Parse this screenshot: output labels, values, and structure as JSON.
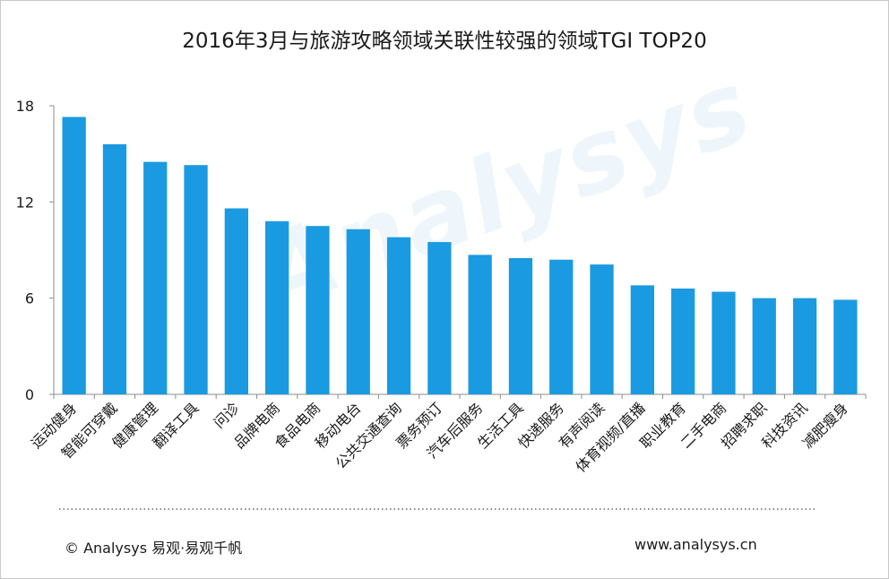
{
  "title": "2016年3月与旅游攻略领域关联性较强的领域TGI  TOP20",
  "watermark": "Analysys",
  "footer": {
    "copyright": "© Analysys 易观·易观千帆",
    "url": "www.analysys.cn"
  },
  "colors": {
    "bar": "#1a9ae0",
    "axis": "#8c8c8c",
    "text": "#1a1a1a"
  },
  "chart_data": {
    "type": "bar",
    "title": "2016年3月与旅游攻略领域关联性较强的领域TGI  TOP20",
    "xlabel": "",
    "ylabel": "",
    "ylim": [
      0,
      18
    ],
    "yticks": [
      "0",
      "6",
      "12",
      "18"
    ],
    "grid": false,
    "legend": "none",
    "categories": [
      "运动健身",
      "智能可穿戴",
      "健康管理",
      "翻译工具",
      "问诊",
      "品牌电商",
      "食品电商",
      "移动电台",
      "公共交通查询",
      "票务预订",
      "汽车后服务",
      "生活工具",
      "快递服务",
      "有声阅读",
      "体育视频/直播",
      "职业教育",
      "二手电商",
      "招聘求职",
      "科技资讯",
      "减肥瘦身"
    ],
    "values": [
      17.3,
      15.6,
      14.5,
      14.3,
      11.6,
      10.8,
      10.5,
      10.3,
      9.8,
      9.5,
      8.7,
      8.5,
      8.4,
      8.1,
      6.8,
      6.6,
      6.4,
      6.0,
      6.0,
      5.9
    ]
  }
}
